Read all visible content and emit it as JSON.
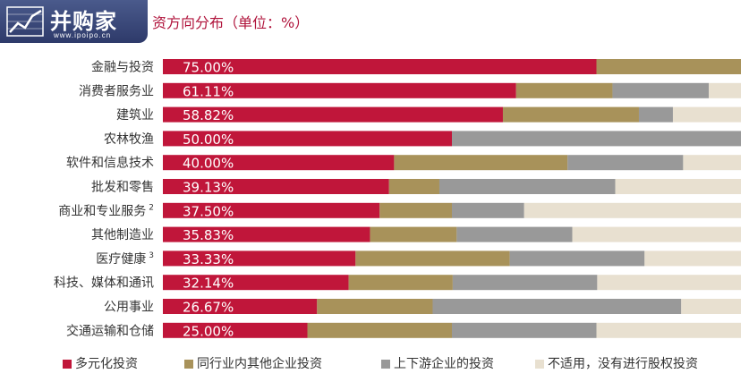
{
  "logo": {
    "name": "并购家",
    "url": "www.ipoipo.cn"
  },
  "chart_data": {
    "type": "bar",
    "orientation": "horizontal",
    "stacked": true,
    "title": "资方向分布（单位：%）",
    "xlim": [
      0,
      100
    ],
    "grid": false,
    "legend_position": "bottom",
    "categories": [
      {
        "label": "金融与投资",
        "sup": ""
      },
      {
        "label": "消费者服务业",
        "sup": ""
      },
      {
        "label": "建筑业",
        "sup": ""
      },
      {
        "label": "农林牧渔",
        "sup": ""
      },
      {
        "label": "软件和信息技术",
        "sup": ""
      },
      {
        "label": "批发和零售",
        "sup": ""
      },
      {
        "label": "商业和专业服务",
        "sup": "2"
      },
      {
        "label": "其他制造业",
        "sup": ""
      },
      {
        "label": "医疗健康",
        "sup": "3"
      },
      {
        "label": "科技、媒体和通讯",
        "sup": ""
      },
      {
        "label": "公用事业",
        "sup": ""
      },
      {
        "label": "交通运输和仓储",
        "sup": ""
      }
    ],
    "data_labels": [
      "75.00%",
      "61.11%",
      "58.82%",
      "50.00%",
      "40.00%",
      "39.13%",
      "37.50%",
      "35.83%",
      "33.33%",
      "32.14%",
      "26.67%",
      "25.00%"
    ],
    "series": [
      {
        "name": "多元化投资",
        "color": "#c0163a",
        "values": [
          75.0,
          61.11,
          58.82,
          50.0,
          40.0,
          39.13,
          37.5,
          35.83,
          33.33,
          32.14,
          26.67,
          25.0
        ]
      },
      {
        "name": "同行业内其他企业投资",
        "color": "#a8925a",
        "values": [
          25.0,
          16.67,
          23.53,
          0.0,
          30.0,
          8.7,
          12.5,
          15.0,
          26.67,
          18.0,
          20.0,
          25.0
        ]
      },
      {
        "name": "上下游企业的投资",
        "color": "#999999",
        "values": [
          0.0,
          16.67,
          5.88,
          50.0,
          20.0,
          30.43,
          12.5,
          20.0,
          23.33,
          25.0,
          43.0,
          25.0
        ]
      },
      {
        "name": "不适用，没有进行股权投资",
        "color": "#e8e0d0",
        "values": [
          0.0,
          5.55,
          11.77,
          0.0,
          10.0,
          21.74,
          37.5,
          29.17,
          16.67,
          24.86,
          10.33,
          25.0
        ]
      }
    ]
  }
}
